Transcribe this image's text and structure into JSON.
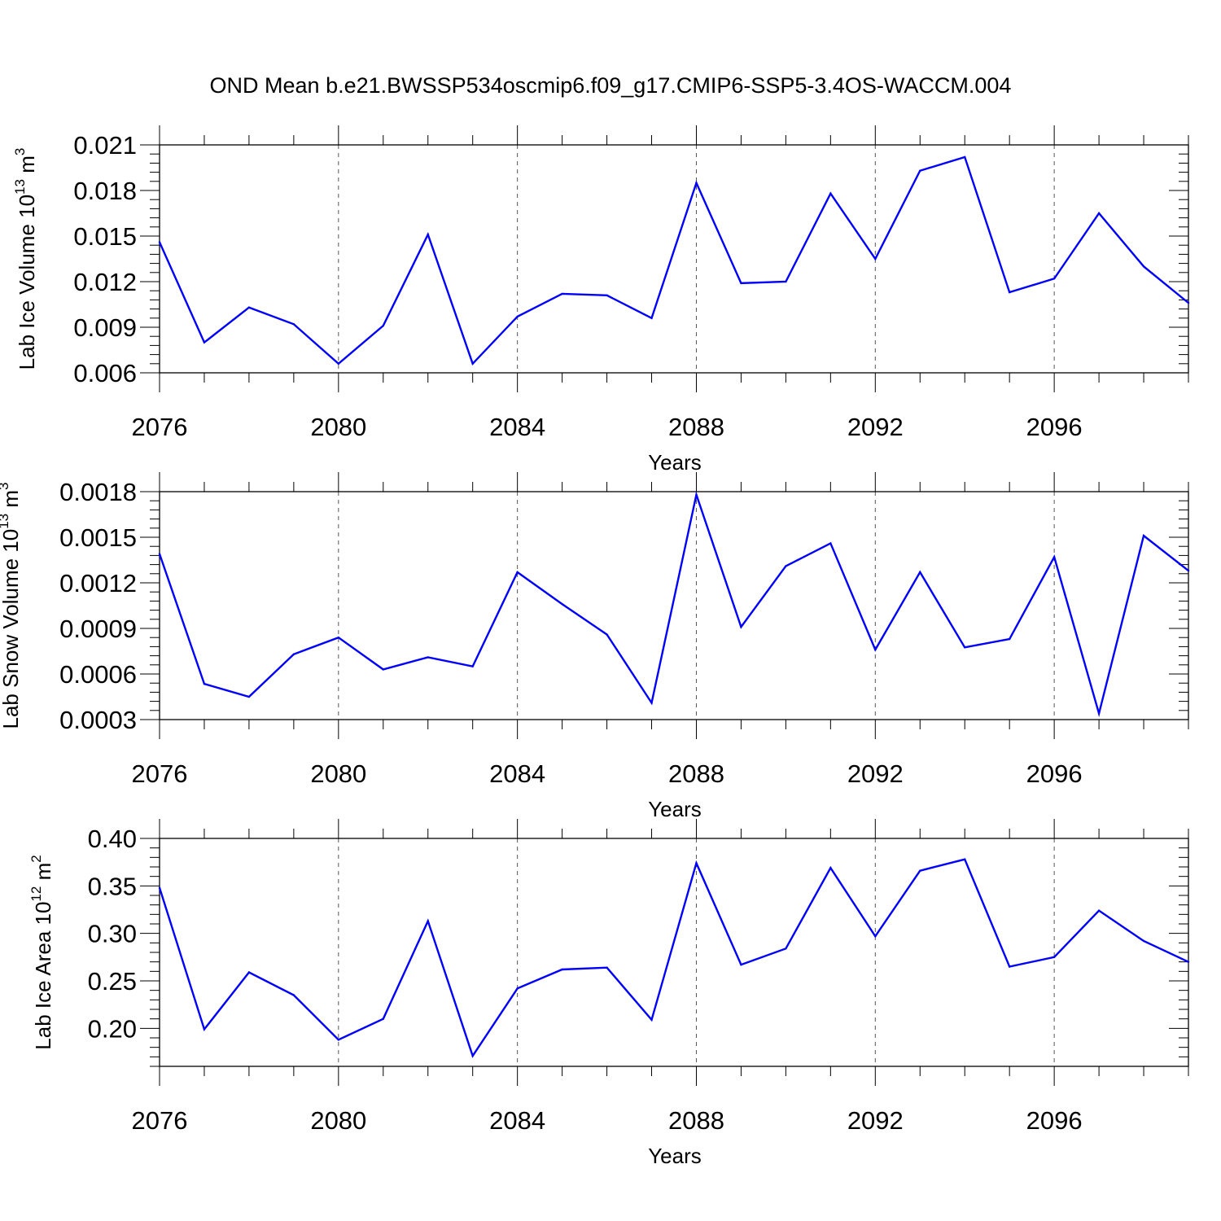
{
  "title": "OND Mean b.e21.BWSSP534oscmip6.f09_g17.CMIP6-SSP5-3.4OS-WACCM.004",
  "chart_data": [
    {
      "type": "line",
      "id": "ice-volume",
      "xlabel": "Years",
      "ylabel_text": "Lab Ice Volume 10",
      "ylabel_exp": "13",
      "ylabel_unit": " m",
      "ylabel_unit_exp": "3",
      "xlim": [
        2076,
        2099
      ],
      "ylim": [
        0.006,
        0.021
      ],
      "xticks": [
        2076,
        2080,
        2084,
        2088,
        2092,
        2096
      ],
      "xtick_labels": [
        "2076",
        "2080",
        "2084",
        "2088",
        "2092",
        "2096"
      ],
      "yticks": [
        0.006,
        0.009,
        0.012,
        0.015,
        0.018,
        0.021
      ],
      "ytick_labels": [
        "0.006",
        "0.009",
        "0.012",
        "0.015",
        "0.018",
        "0.021"
      ],
      "grid": "x-dashed",
      "line_color": "#0000ff",
      "x": [
        2076,
        2077,
        2078,
        2079,
        2080,
        2081,
        2082,
        2083,
        2084,
        2085,
        2086,
        2087,
        2088,
        2089,
        2090,
        2091,
        2092,
        2093,
        2094,
        2095,
        2096,
        2097,
        2098,
        2099
      ],
      "values": [
        0.0146,
        0.008,
        0.0103,
        0.0092,
        0.0066,
        0.0091,
        0.0151,
        0.0066,
        0.0097,
        0.0112,
        0.0111,
        0.0096,
        0.0185,
        0.0119,
        0.012,
        0.0178,
        0.0135,
        0.0193,
        0.0202,
        0.0113,
        0.0122,
        0.0165,
        0.013,
        0.0106
      ]
    },
    {
      "type": "line",
      "id": "snow-volume",
      "xlabel": "Years",
      "ylabel_text": "Lab Snow Volume 10",
      "ylabel_exp": "13",
      "ylabel_unit": " m",
      "ylabel_unit_exp": "3",
      "xlim": [
        2076,
        2099
      ],
      "ylim": [
        0.0003,
        0.0018
      ],
      "xticks": [
        2076,
        2080,
        2084,
        2088,
        2092,
        2096
      ],
      "xtick_labels": [
        "2076",
        "2080",
        "2084",
        "2088",
        "2092",
        "2096"
      ],
      "yticks": [
        0.0003,
        0.0006,
        0.0009,
        0.0012,
        0.0015,
        0.0018
      ],
      "ytick_labels": [
        "0.0003",
        "0.0006",
        "0.0009",
        "0.0012",
        "0.0015",
        "0.0018"
      ],
      "grid": "x-dashed",
      "line_color": "#0000ff",
      "x": [
        2076,
        2077,
        2078,
        2079,
        2080,
        2081,
        2082,
        2083,
        2084,
        2085,
        2086,
        2087,
        2088,
        2089,
        2090,
        2091,
        2092,
        2093,
        2094,
        2095,
        2096,
        2097,
        2098,
        2099
      ],
      "values": [
        0.00139,
        0.000535,
        0.00045,
        0.00073,
        0.00084,
        0.00063,
        0.00071,
        0.00065,
        0.00127,
        0.00106,
        0.00086,
        0.00041,
        0.00178,
        0.00091,
        0.00131,
        0.00146,
        0.00076,
        0.00127,
        0.000775,
        0.00083,
        0.00137,
        0.00034,
        0.00151,
        0.00128
      ]
    },
    {
      "type": "line",
      "id": "ice-area",
      "xlabel": "Years",
      "ylabel_text": "Lab Ice Area 10",
      "ylabel_exp": "12",
      "ylabel_unit": " m",
      "ylabel_unit_exp": "2",
      "xlim": [
        2076,
        2099
      ],
      "ylim": [
        0.16,
        0.4
      ],
      "xticks": [
        2076,
        2080,
        2084,
        2088,
        2092,
        2096
      ],
      "xtick_labels": [
        "2076",
        "2080",
        "2084",
        "2088",
        "2092",
        "2096"
      ],
      "yticks": [
        0.2,
        0.25,
        0.3,
        0.35,
        0.4
      ],
      "ytick_labels": [
        "0.20",
        "0.25",
        "0.30",
        "0.35",
        "0.40"
      ],
      "grid": "x-dashed",
      "line_color": "#0000ff",
      "x": [
        2076,
        2077,
        2078,
        2079,
        2080,
        2081,
        2082,
        2083,
        2084,
        2085,
        2086,
        2087,
        2088,
        2089,
        2090,
        2091,
        2092,
        2093,
        2094,
        2095,
        2096,
        2097,
        2098,
        2099
      ],
      "values": [
        0.348,
        0.199,
        0.259,
        0.235,
        0.188,
        0.21,
        0.313,
        0.171,
        0.242,
        0.262,
        0.264,
        0.209,
        0.374,
        0.267,
        0.284,
        0.369,
        0.297,
        0.366,
        0.378,
        0.265,
        0.275,
        0.324,
        0.292,
        0.27
      ]
    }
  ]
}
